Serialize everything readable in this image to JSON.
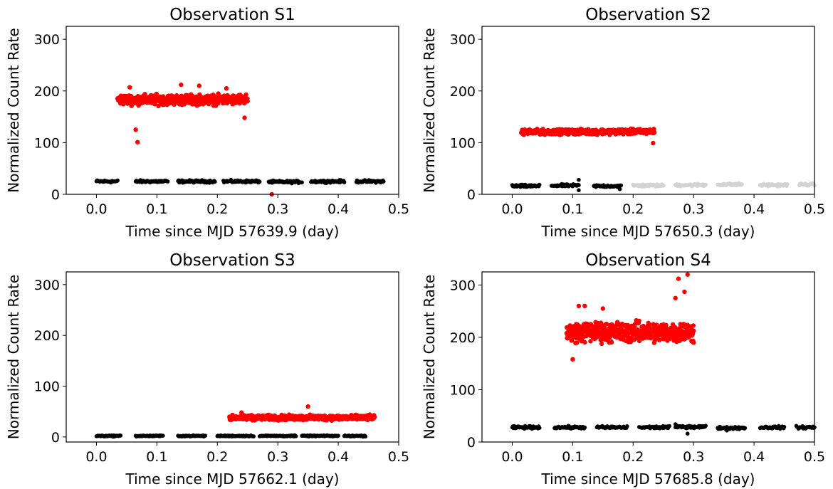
{
  "chart_data": [
    {
      "type": "scatter",
      "title": "Observation S1",
      "xlabel": "Time since MJD 57639.9 (day)",
      "ylabel": "Normalized Count Rate",
      "xlim": [
        -0.05,
        0.5
      ],
      "ylim": [
        0,
        325
      ],
      "xticks": [
        "0.0",
        "0.1",
        "0.2",
        "0.3",
        "0.4",
        "0.5"
      ],
      "yticks": [
        "0",
        "100",
        "200",
        "300"
      ],
      "grid": false,
      "series": [
        {
          "color": "#000000",
          "segments": [
            [
              0.0,
              0.035,
              25
            ],
            [
              0.065,
              0.118,
              25
            ],
            [
              0.135,
              0.196,
              25
            ],
            [
              0.21,
              0.27,
              25
            ],
            [
              0.285,
              0.34,
              24
            ],
            [
              0.355,
              0.41,
              25
            ],
            [
              0.43,
              0.475,
              25
            ]
          ],
          "spread": 2
        },
        {
          "color": "#ff0000",
          "segments": [
            [
              0.035,
              0.25,
              183
            ]
          ],
          "spread": 8,
          "outliers": [
            [
              0.065,
              125
            ],
            [
              0.068,
              101
            ],
            [
              0.245,
              148
            ],
            [
              0.14,
              212
            ],
            [
              0.17,
              210
            ],
            [
              0.055,
              207
            ],
            [
              0.215,
              205
            ],
            [
              0.29,
              0
            ]
          ]
        }
      ]
    },
    {
      "type": "scatter",
      "title": "Observation S2",
      "xlabel": "Time since MJD 57650.3 (day)",
      "ylabel": "Normalized Count Rate",
      "xlim": [
        -0.05,
        0.5
      ],
      "ylim": [
        0,
        325
      ],
      "xticks": [
        "0.0",
        "0.1",
        "0.2",
        "0.3",
        "0.4",
        "0.5"
      ],
      "yticks": [
        "0",
        "100",
        "200",
        "300"
      ],
      "grid": false,
      "series": [
        {
          "color": "#000000",
          "segments": [
            [
              0.0,
              0.045,
              16
            ],
            [
              0.065,
              0.11,
              17
            ],
            [
              0.135,
              0.18,
              16
            ]
          ],
          "spread": 2,
          "outliers": [
            [
              0.11,
              28
            ],
            [
              0.11,
              8
            ],
            [
              0.178,
              10
            ]
          ]
        },
        {
          "color": "#d3d3d3",
          "segments": [
            [
              0.2,
              0.25,
              17
            ],
            [
              0.27,
              0.32,
              18
            ],
            [
              0.34,
              0.38,
              19
            ],
            [
              0.41,
              0.455,
              18
            ],
            [
              0.475,
              0.5,
              19
            ]
          ],
          "spread": 2
        },
        {
          "color": "#ff0000",
          "segments": [
            [
              0.015,
              0.235,
              121
            ]
          ],
          "spread": 4,
          "trend": 0.04,
          "outliers": [
            [
              0.233,
              99
            ]
          ]
        }
      ]
    },
    {
      "type": "scatter",
      "title": "Observation S3",
      "xlabel": "Time since MJD 57662.1 (day)",
      "ylabel": "Normalized Count Rate",
      "xlim": [
        -0.05,
        0.5
      ],
      "ylim": [
        -10,
        325
      ],
      "xticks": [
        "0.0",
        "0.1",
        "0.2",
        "0.3",
        "0.4",
        "0.5"
      ],
      "yticks": [
        "0",
        "100",
        "200",
        "300"
      ],
      "grid": false,
      "series": [
        {
          "color": "#000000",
          "segments": [
            [
              0.0,
              0.04,
              2
            ],
            [
              0.065,
              0.11,
              2
            ],
            [
              0.135,
              0.18,
              2
            ],
            [
              0.2,
              0.26,
              2
            ],
            [
              0.27,
              0.33,
              2
            ],
            [
              0.34,
              0.4,
              2
            ],
            [
              0.41,
              0.445,
              2
            ]
          ],
          "spread": 1
        },
        {
          "color": "#ff0000",
          "segments": [
            [
              0.22,
              0.46,
              38
            ]
          ],
          "spread": 4,
          "outliers": [
            [
              0.35,
              60
            ],
            [
              0.24,
              48
            ]
          ]
        }
      ]
    },
    {
      "type": "scatter",
      "title": "Observation S4",
      "xlabel": "Time since MJD 57685.8 (day)",
      "ylabel": "Normalized Count Rate",
      "xlim": [
        -0.05,
        0.5
      ],
      "ylim": [
        0,
        325
      ],
      "xticks": [
        "0.0",
        "0.1",
        "0.2",
        "0.3",
        "0.4",
        "0.5"
      ],
      "yticks": [
        "0",
        "100",
        "200",
        "300"
      ],
      "grid": false,
      "series": [
        {
          "color": "#000000",
          "segments": [
            [
              0.0,
              0.045,
              28
            ],
            [
              0.07,
              0.12,
              28
            ],
            [
              0.14,
              0.19,
              28
            ],
            [
              0.21,
              0.26,
              28
            ],
            [
              0.27,
              0.32,
              29
            ],
            [
              0.34,
              0.385,
              27
            ],
            [
              0.41,
              0.45,
              28
            ],
            [
              0.47,
              0.5,
              28
            ]
          ],
          "spread": 2,
          "outliers": [
            [
              0.29,
              16
            ],
            [
              0.355,
              22
            ],
            [
              0.27,
              34
            ]
          ]
        },
        {
          "color": "#ff0000",
          "segments": [
            [
              0.09,
              0.3,
              210
            ]
          ],
          "spread": 16,
          "outliers": [
            [
              0.1,
              158
            ],
            [
              0.29,
              320
            ],
            [
              0.275,
              312
            ],
            [
              0.11,
              260
            ],
            [
              0.12,
              260
            ],
            [
              0.285,
              287
            ],
            [
              0.27,
              275
            ],
            [
              0.15,
              255
            ],
            [
              0.3,
              190
            ]
          ]
        }
      ]
    }
  ]
}
